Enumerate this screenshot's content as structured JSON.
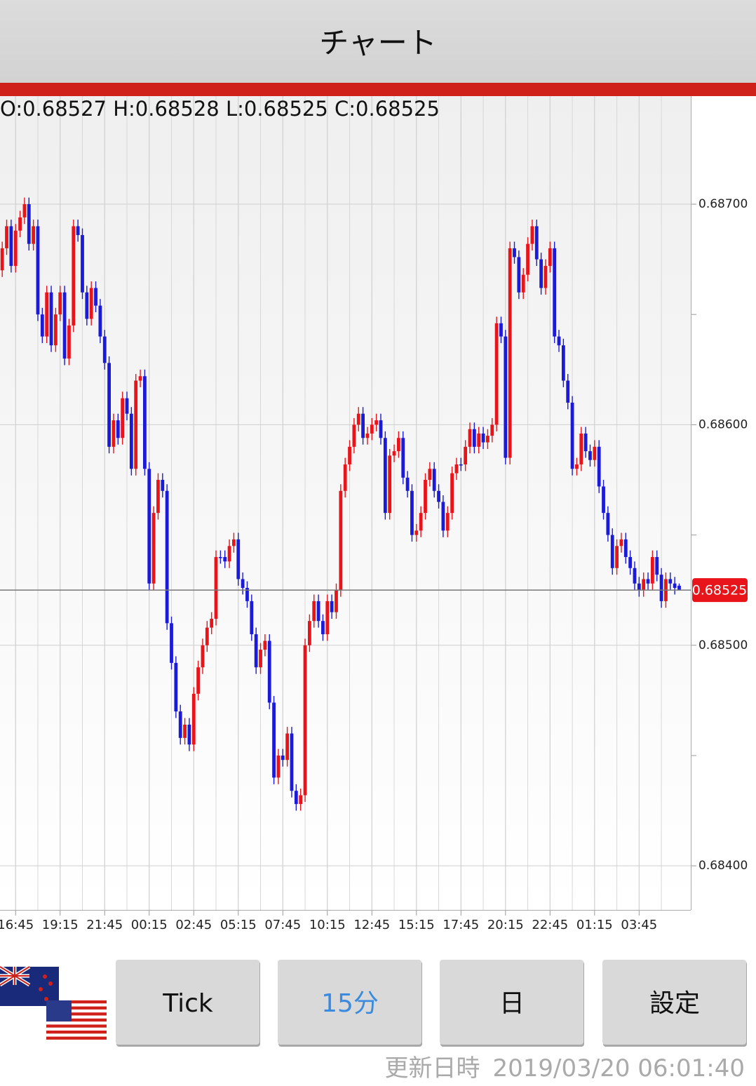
{
  "header": {
    "title": "チャート"
  },
  "chart_data": {
    "type": "candlestick",
    "ohlc_text": "O:0.68527 H:0.68528 L:0.68525 C:0.68525",
    "up_color": "#e8141a",
    "down_color": "#1a1ad8",
    "open": [
      0.6867,
      0.6868,
      0.6869,
      0.68672,
      0.68688,
      0.68694,
      0.687,
      0.68682,
      0.6869,
      0.6865,
      0.6864,
      0.6866,
      0.68636,
      0.6865,
      0.6866,
      0.6863,
      0.68645,
      0.6869,
      0.68686,
      0.6866,
      0.68648,
      0.68662,
      0.68654,
      0.6864,
      0.68628,
      0.6859,
      0.68602,
      0.68594,
      0.68612,
      0.68605,
      0.6858,
      0.6862,
      0.68622,
      0.6858,
      0.68528,
      0.6856,
      0.68575,
      0.6857,
      0.6851,
      0.68492,
      0.6847,
      0.68458,
      0.68464,
      0.68455,
      0.68478,
      0.6849,
      0.685,
      0.68508,
      0.68512,
      0.6854,
      0.6854,
      0.68538,
      0.68545,
      0.68548,
      0.6853,
      0.68526,
      0.6852,
      0.68505,
      0.6849,
      0.68498,
      0.68502,
      0.68474,
      0.6844,
      0.6845,
      0.68448,
      0.6846,
      0.68434,
      0.68428,
      0.68432,
      0.685,
      0.68511,
      0.6852,
      0.68511,
      0.68505,
      0.6852,
      0.68515,
      0.68525,
      0.6857,
      0.68582,
      0.6859,
      0.686,
      0.68605,
      0.68594,
      0.68596,
      0.686,
      0.68602,
      0.68594,
      0.6856,
      0.68586,
      0.68588,
      0.68594,
      0.68576,
      0.6857,
      0.6855,
      0.68552,
      0.6856,
      0.68575,
      0.6858,
      0.6857,
      0.68565,
      0.68552,
      0.6856,
      0.68578,
      0.68582,
      0.68582,
      0.6859,
      0.68598,
      0.6859,
      0.68596,
      0.68592,
      0.68595,
      0.686,
      0.68646,
      0.6864,
      0.68585,
      0.6868,
      0.68676,
      0.6866,
      0.68668,
      0.68682,
      0.6869,
      0.68675,
      0.68662,
      0.68672,
      0.6868,
      0.6864,
      0.68636,
      0.6862,
      0.6861,
      0.6858,
      0.68582,
      0.68596,
      0.68588,
      0.68584,
      0.6859,
      0.68572,
      0.6856,
      0.6855,
      0.68535,
      0.68545,
      0.68548,
      0.6854,
      0.68535,
      0.68528,
      0.68525,
      0.6853,
      0.68528,
      0.6854,
      0.68532,
      0.6852,
      0.6853,
      0.68528,
      0.68527
    ],
    "high": [
      0.68683,
      0.68693,
      0.68693,
      0.68691,
      0.68697,
      0.68703,
      0.68703,
      0.68693,
      0.68693,
      0.68653,
      0.68663,
      0.68663,
      0.68653,
      0.68663,
      0.68663,
      0.68648,
      0.68693,
      0.68693,
      0.68689,
      0.68663,
      0.68665,
      0.68665,
      0.68657,
      0.68643,
      0.68631,
      0.68605,
      0.68605,
      0.68615,
      0.68615,
      0.68608,
      0.68623,
      0.68625,
      0.68625,
      0.68583,
      0.68563,
      0.68578,
      0.68578,
      0.68573,
      0.68513,
      0.68495,
      0.68473,
      0.68467,
      0.68467,
      0.68481,
      0.68493,
      0.68503,
      0.68511,
      0.68515,
      0.68543,
      0.68543,
      0.68543,
      0.68548,
      0.68551,
      0.68551,
      0.68533,
      0.68529,
      0.68523,
      0.68508,
      0.68501,
      0.68505,
      0.68505,
      0.68477,
      0.68453,
      0.68453,
      0.68463,
      0.68463,
      0.68437,
      0.68435,
      0.68503,
      0.68514,
      0.68523,
      0.68523,
      0.68514,
      0.68523,
      0.68523,
      0.68528,
      0.68573,
      0.68585,
      0.68593,
      0.68603,
      0.68608,
      0.68608,
      0.68599,
      0.68603,
      0.68605,
      0.68605,
      0.68597,
      0.68589,
      0.68591,
      0.68597,
      0.68597,
      0.68579,
      0.68573,
      0.68555,
      0.68563,
      0.68578,
      0.68583,
      0.68583,
      0.68573,
      0.68568,
      0.68563,
      0.68581,
      0.68585,
      0.68585,
      0.68593,
      0.68601,
      0.68601,
      0.68599,
      0.68599,
      0.68598,
      0.68603,
      0.68649,
      0.68649,
      0.68643,
      0.68683,
      0.68683,
      0.68679,
      0.68671,
      0.68685,
      0.68693,
      0.68693,
      0.68678,
      0.68675,
      0.68683,
      0.68683,
      0.68643,
      0.68639,
      0.68623,
      0.68613,
      0.68585,
      0.68599,
      0.68599,
      0.68591,
      0.68593,
      0.68593,
      0.68575,
      0.68563,
      0.68553,
      0.68548,
      0.68551,
      0.68551,
      0.68543,
      0.68538,
      0.68531,
      0.68533,
      0.68533,
      0.68543,
      0.68543,
      0.68535,
      0.68533,
      0.68533,
      0.68531,
      0.68528
    ],
    "low": [
      0.68667,
      0.68677,
      0.68669,
      0.68669,
      0.68685,
      0.68691,
      0.68679,
      0.68679,
      0.68647,
      0.68637,
      0.68637,
      0.68633,
      0.68633,
      0.68647,
      0.68627,
      0.68627,
      0.68642,
      0.68683,
      0.68657,
      0.68645,
      0.68645,
      0.68651,
      0.68637,
      0.68625,
      0.68587,
      0.68587,
      0.68591,
      0.68591,
      0.68602,
      0.68577,
      0.68577,
      0.68617,
      0.68577,
      0.68525,
      0.68525,
      0.68557,
      0.68567,
      0.68507,
      0.68489,
      0.68467,
      0.68455,
      0.68455,
      0.68452,
      0.68452,
      0.68475,
      0.68487,
      0.68497,
      0.68505,
      0.68509,
      0.68537,
      0.68535,
      0.68535,
      0.68542,
      0.68527,
      0.68523,
      0.68517,
      0.68502,
      0.68487,
      0.68487,
      0.68495,
      0.68471,
      0.68437,
      0.68437,
      0.68445,
      0.68445,
      0.68431,
      0.68425,
      0.68425,
      0.68429,
      0.68497,
      0.68508,
      0.68508,
      0.68502,
      0.68502,
      0.68512,
      0.68512,
      0.68522,
      0.68567,
      0.68579,
      0.68587,
      0.68597,
      0.68591,
      0.68591,
      0.68593,
      0.68597,
      0.68591,
      0.68557,
      0.68557,
      0.68583,
      0.68585,
      0.68573,
      0.68567,
      0.68547,
      0.68547,
      0.68549,
      0.68557,
      0.68572,
      0.68567,
      0.68562,
      0.68549,
      0.68549,
      0.68557,
      0.68575,
      0.68579,
      0.68579,
      0.68587,
      0.68587,
      0.68587,
      0.68589,
      0.68589,
      0.68592,
      0.68597,
      0.68637,
      0.68582,
      0.68582,
      0.68673,
      0.68657,
      0.68657,
      0.68665,
      0.68679,
      0.68672,
      0.68659,
      0.68659,
      0.68669,
      0.68637,
      0.68633,
      0.68617,
      0.68607,
      0.68577,
      0.68577,
      0.68579,
      0.68585,
      0.68581,
      0.68581,
      0.68569,
      0.68557,
      0.68547,
      0.68532,
      0.68532,
      0.68542,
      0.68537,
      0.68532,
      0.68525,
      0.68522,
      0.68522,
      0.68525,
      0.68525,
      0.68529,
      0.68517,
      0.68517,
      0.68525,
      0.68523,
      0.68525
    ],
    "close": [
      0.6868,
      0.6869,
      0.68672,
      0.68688,
      0.68694,
      0.687,
      0.68682,
      0.6869,
      0.6865,
      0.6864,
      0.6866,
      0.68636,
      0.6865,
      0.6866,
      0.6863,
      0.68645,
      0.6869,
      0.68686,
      0.6866,
      0.68648,
      0.68662,
      0.68654,
      0.6864,
      0.68628,
      0.6859,
      0.68602,
      0.68594,
      0.68612,
      0.68605,
      0.6858,
      0.6862,
      0.68622,
      0.6858,
      0.68528,
      0.6856,
      0.68575,
      0.6857,
      0.6851,
      0.68492,
      0.6847,
      0.68458,
      0.68464,
      0.68455,
      0.68478,
      0.6849,
      0.685,
      0.68508,
      0.68512,
      0.6854,
      0.6854,
      0.68538,
      0.68545,
      0.68548,
      0.6853,
      0.68526,
      0.6852,
      0.68505,
      0.6849,
      0.68498,
      0.68502,
      0.68474,
      0.6844,
      0.6845,
      0.68448,
      0.6846,
      0.68434,
      0.68428,
      0.68432,
      0.685,
      0.68511,
      0.6852,
      0.68511,
      0.68505,
      0.6852,
      0.68515,
      0.68525,
      0.6857,
      0.68582,
      0.6859,
      0.686,
      0.68605,
      0.68594,
      0.68596,
      0.686,
      0.68602,
      0.68594,
      0.6856,
      0.68586,
      0.68588,
      0.68594,
      0.68576,
      0.6857,
      0.6855,
      0.68552,
      0.6856,
      0.68575,
      0.6858,
      0.6857,
      0.68565,
      0.68552,
      0.6856,
      0.68578,
      0.68582,
      0.68582,
      0.6859,
      0.68598,
      0.6859,
      0.68596,
      0.68592,
      0.68595,
      0.686,
      0.68646,
      0.6864,
      0.68585,
      0.6868,
      0.68676,
      0.6866,
      0.68668,
      0.68682,
      0.6869,
      0.68675,
      0.68662,
      0.68672,
      0.6868,
      0.6864,
      0.68636,
      0.6862,
      0.6861,
      0.6858,
      0.68582,
      0.68596,
      0.68588,
      0.68584,
      0.6859,
      0.68572,
      0.6856,
      0.6855,
      0.68535,
      0.68545,
      0.68548,
      0.6854,
      0.68535,
      0.68528,
      0.68525,
      0.6853,
      0.68528,
      0.6854,
      0.68532,
      0.6852,
      0.6853,
      0.68528,
      0.68526,
      0.68525
    ],
    "last_price": 0.68525,
    "ylim": [
      0.6838,
      0.68749
    ],
    "yticks": [
      {
        "value": 0.687,
        "label": "0.68700"
      },
      {
        "value": 0.686,
        "label": "0.68600"
      },
      {
        "value": 0.685,
        "label": "0.68500"
      },
      {
        "value": 0.684,
        "label": "0.68400"
      }
    ],
    "yminor": [
      0.6865,
      0.6855,
      0.6845
    ],
    "xlim": [
      -0.5,
      154.6
    ],
    "xticks": [
      {
        "value": 3,
        "label": "16:45"
      },
      {
        "value": 13,
        "label": "19:15"
      },
      {
        "value": 23,
        "label": "21:45"
      },
      {
        "value": 33,
        "label": "00:15"
      },
      {
        "value": 43,
        "label": "02:45"
      },
      {
        "value": 53,
        "label": "05:15"
      },
      {
        "value": 63,
        "label": "07:45"
      },
      {
        "value": 73,
        "label": "10:15"
      },
      {
        "value": 83,
        "label": "12:45"
      },
      {
        "value": 93,
        "label": "15:15"
      },
      {
        "value": 103,
        "label": "17:45"
      },
      {
        "value": 113,
        "label": "20:15"
      },
      {
        "value": 123,
        "label": "22:45"
      },
      {
        "value": 133,
        "label": "01:15"
      },
      {
        "value": 143,
        "label": "03:45"
      }
    ],
    "grid": true
  },
  "buttons": [
    "Tick",
    "15分",
    "日",
    "設定"
  ],
  "active_button": 1,
  "footer": {
    "label": "更新日時",
    "timestamp": "2019/03/20 06:01:40"
  }
}
